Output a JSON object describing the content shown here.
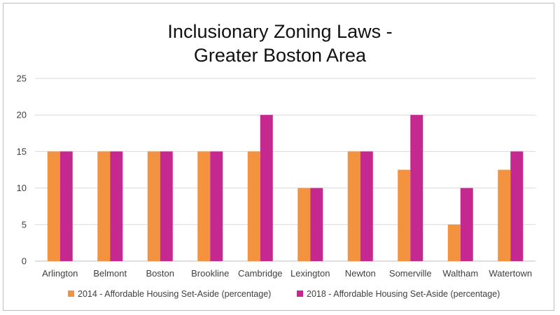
{
  "chart_data": {
    "type": "bar",
    "title": "Inclusionary Zoning Laws -",
    "subtitle": "Greater Boston Area",
    "xlabel": "",
    "ylabel": "",
    "ylim": [
      0,
      25
    ],
    "yticks": [
      0,
      5,
      10,
      15,
      20,
      25
    ],
    "grid": true,
    "legend_position": "bottom",
    "categories": [
      "Arlington",
      "Belmont",
      "Boston",
      "Brookline",
      "Cambridge",
      "Lexington",
      "Newton",
      "Somerville",
      "Waltham",
      "Watertown"
    ],
    "series": [
      {
        "name": "2014 - Affordable Housing Set-Aside (percentage)",
        "color": "#f39340",
        "values": [
          15,
          15,
          15,
          15,
          15,
          10,
          15,
          12.5,
          5,
          12.5
        ]
      },
      {
        "name": "2018 - Affordable Housing Set-Aside (percentage)",
        "color": "#c5288e",
        "values": [
          15,
          15,
          15,
          15,
          20,
          10,
          15,
          20,
          10,
          15
        ]
      }
    ]
  }
}
